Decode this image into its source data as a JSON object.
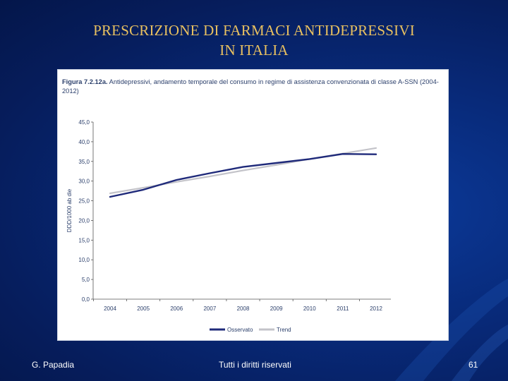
{
  "slide": {
    "title_line1": "PRESCRIZIONE DI FARMACI ANTIDEPRESSIVI",
    "title_line2": "IN ITALIA",
    "footer_left": "G. Papadia",
    "footer_center": "Tutti i diritti riservati",
    "footer_right": "61"
  },
  "chart_data": {
    "type": "line",
    "figure_label": "Figura 7.2.12a.",
    "title": "Antidepressivi, andamento temporale del consumo in regime di assistenza convenzionata di classe A-SSN (2004-2012)",
    "ylabel": "DDD/1000 ab die",
    "xlabel": "",
    "ylim": [
      0,
      45
    ],
    "yticks": [
      "0,0",
      "5,0",
      "10,0",
      "15,0",
      "20,0",
      "25,0",
      "30,0",
      "35,0",
      "40,0",
      "45,0"
    ],
    "categories": [
      "2004",
      "2005",
      "2006",
      "2007",
      "2008",
      "2009",
      "2010",
      "2011",
      "2012"
    ],
    "series": [
      {
        "name": "Osservato",
        "color": "#1f2a7a",
        "values": [
          26.0,
          27.8,
          30.3,
          32.0,
          33.6,
          34.6,
          35.6,
          36.9,
          36.8
        ]
      },
      {
        "name": "Trend",
        "color": "#c3c3c9",
        "values": [
          26.9,
          28.3,
          29.8,
          31.2,
          32.7,
          34.1,
          35.6,
          37.0,
          38.4
        ]
      }
    ],
    "legend": "bottom"
  }
}
